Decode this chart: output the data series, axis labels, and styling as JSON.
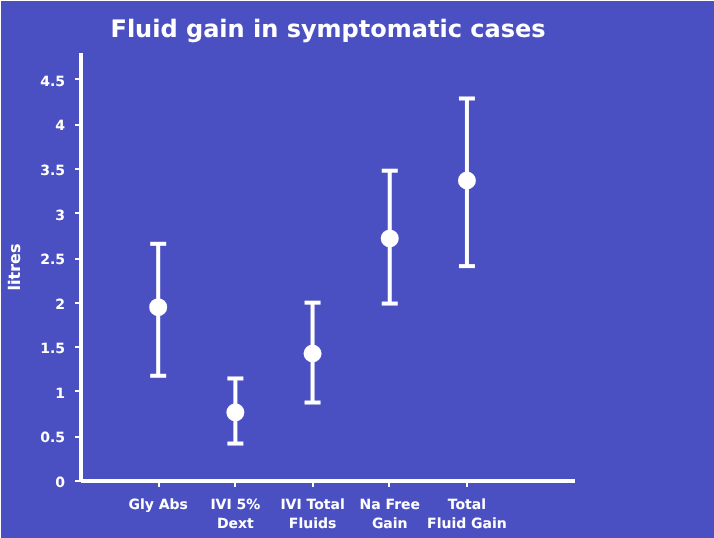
{
  "chart_data": {
    "type": "scatter",
    "title": "Fluid gain in symptomatic cases",
    "ylabel": "litres",
    "categories": [
      "Gly Abs",
      "IVI 5%\nDext",
      "IVI Total\nFluids",
      "Na Free\nGain",
      "Total\nFluid Gain"
    ],
    "values": [
      1.95,
      0.77,
      1.43,
      2.72,
      3.37
    ],
    "errors": [
      [
        1.18,
        2.66
      ],
      [
        0.42,
        1.15
      ],
      [
        0.88,
        2.0
      ],
      [
        1.99,
        3.48
      ],
      [
        2.41,
        4.29
      ]
    ],
    "color": "#ffffff",
    "marker": "circle",
    "grid": false,
    "ylim": [
      0,
      4.8
    ],
    "yticks": [
      0,
      0.5,
      1.0,
      1.5,
      2.0,
      2.5,
      3.0,
      3.5,
      4.0,
      4.5
    ]
  }
}
